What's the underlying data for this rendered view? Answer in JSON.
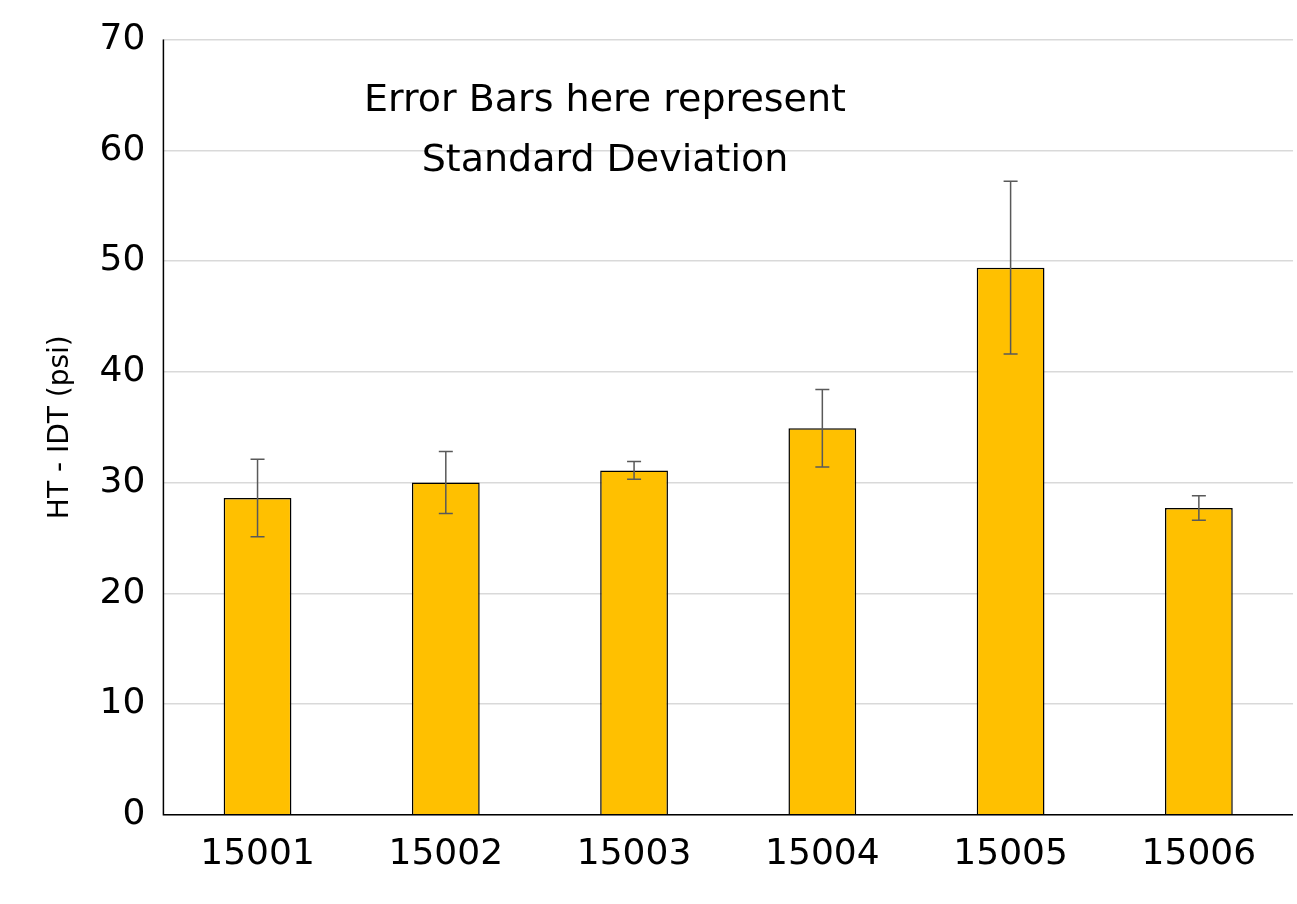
{
  "chart_data": {
    "type": "bar",
    "ylabel": "HT - IDT (psi)",
    "categories": [
      "15001",
      "15002",
      "15003",
      "15004",
      "15005",
      "15006"
    ],
    "values": [
      28.6,
      30.0,
      31.1,
      34.9,
      49.4,
      27.7
    ],
    "errors": [
      3.5,
      2.8,
      0.8,
      3.5,
      7.8,
      1.1
    ],
    "color": "#ffc000",
    "ylim": [
      0,
      70
    ],
    "yticks": [
      0,
      10,
      20,
      30,
      40,
      50,
      60,
      70
    ],
    "grid": "y",
    "annotations": [
      "Error Bars here represent Standard Deviation"
    ]
  }
}
